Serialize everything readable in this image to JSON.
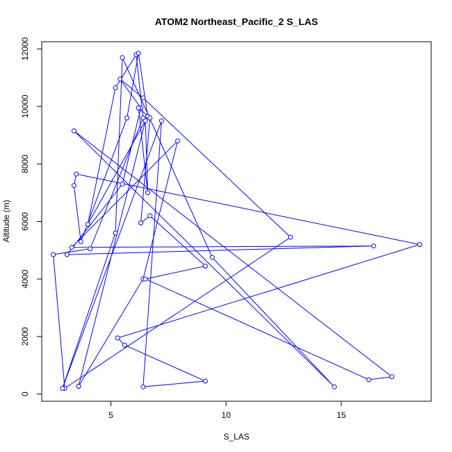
{
  "chart_data": {
    "type": "line",
    "title": "ATOM2 Northeast_Pacific_2 S_LAS",
    "xlabel": "S_LAS",
    "ylabel": "Altitude (m)",
    "xlim": [
      2.0,
      18.9
    ],
    "ylim": [
      -250,
      12250
    ],
    "xticks": [
      5,
      10,
      15
    ],
    "yticks": [
      0,
      2000,
      4000,
      6000,
      8000,
      10000,
      12000
    ],
    "line_color": "#0000ff",
    "marker": "open-circle",
    "grid": false,
    "legend": "none",
    "series": [
      {
        "x": [
          3.6,
          6.4,
          7.9,
          3.3,
          16.4,
          3.1,
          5.5,
          6.3,
          5.4,
          6.4,
          12.8,
          3.0,
          2.5,
          4.1,
          6.4,
          6.1,
          5.2,
          4.0,
          6.6,
          6.2,
          5.7,
          3.7,
          3.4,
          3.5,
          18.4,
          5.3,
          5.6,
          9.1,
          6.4,
          7.2,
          2.9,
          5.2,
          5.5,
          9.4,
          14.7,
          3.4,
          17.2,
          16.2,
          6.5,
          9.1,
          6.7,
          6.3,
          6.7,
          6.2,
          6.6,
          6.5,
          3.6
        ],
        "y": [
          270,
          4000,
          8800,
          5100,
          5150,
          4850,
          7300,
          9950,
          10950,
          10300,
          5450,
          200,
          4850,
          5050,
          9600,
          11800,
          10650,
          5900,
          9650,
          11850,
          9600,
          5300,
          7250,
          7650,
          5200,
          1950,
          1700,
          450,
          250,
          9500,
          200,
          5600,
          11700,
          4750,
          250,
          9150,
          600,
          500,
          4000,
          4450,
          6200,
          5950,
          9600,
          9950,
          7000,
          9500,
          270
        ]
      }
    ]
  }
}
